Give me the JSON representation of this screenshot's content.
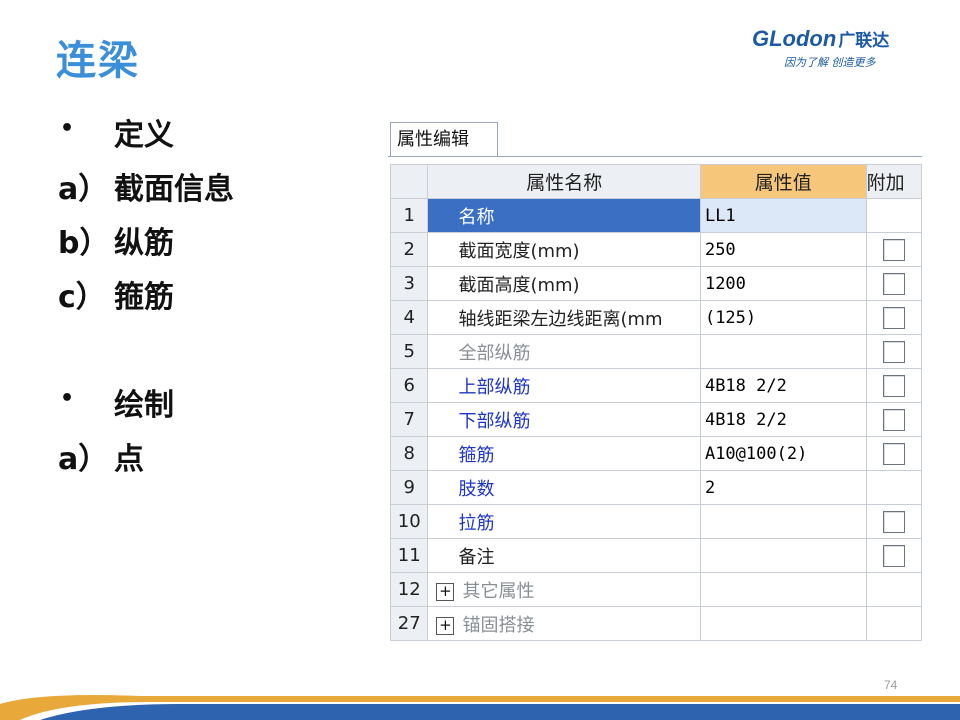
{
  "slide": {
    "title": "连梁",
    "page_number": "74"
  },
  "logo": {
    "brand": "GLodon",
    "brand_cn": "广联达",
    "tagline": "因为了解 创造更多"
  },
  "bullets": [
    {
      "marker": "•",
      "text": "定义"
    },
    {
      "marker": "a）",
      "text": "截面信息"
    },
    {
      "marker": "b）",
      "text": "纵筋"
    },
    {
      "marker": "c）",
      "text": "箍筋"
    },
    {
      "marker": "•",
      "text": "绘制"
    },
    {
      "marker": "a）",
      "text": "点"
    }
  ],
  "panel": {
    "tab_label": "属性编辑",
    "columns": [
      "属性名称",
      "属性值",
      "附加"
    ],
    "rows": [
      {
        "no": "1",
        "name": "名称",
        "value": "LL1",
        "checkbox": false
      },
      {
        "no": "2",
        "name": "截面宽度(mm)",
        "value": "250",
        "checkbox": true
      },
      {
        "no": "3",
        "name": "截面高度(mm)",
        "value": "1200",
        "checkbox": true
      },
      {
        "no": "4",
        "name": "轴线距梁左边线距离(mm",
        "value": "(125)",
        "checkbox": true
      },
      {
        "no": "5",
        "name": "全部纵筋",
        "value": "",
        "checkbox": true
      },
      {
        "no": "6",
        "name": "上部纵筋",
        "value": "4B18 2/2",
        "checkbox": true
      },
      {
        "no": "7",
        "name": "下部纵筋",
        "value": "4B18 2/2",
        "checkbox": true
      },
      {
        "no": "8",
        "name": "箍筋",
        "value": "A10@100(2)",
        "checkbox": true
      },
      {
        "no": "9",
        "name": "肢数",
        "value": "2",
        "checkbox": false
      },
      {
        "no": "10",
        "name": "拉筋",
        "value": "",
        "checkbox": true
      },
      {
        "no": "11",
        "name": "备注",
        "value": "",
        "checkbox": true
      },
      {
        "no": "12",
        "name": "其它属性",
        "value": "",
        "checkbox": false
      },
      {
        "no": "27",
        "name": "锚固搭接",
        "value": "",
        "checkbox": false
      }
    ]
  },
  "colors": {
    "title": "#3b8fd8",
    "brand": "#1d5aa6",
    "active_row": "#3a6fc4",
    "header_highlight": "#f6c77a",
    "blue_text": "#1e35c8"
  }
}
